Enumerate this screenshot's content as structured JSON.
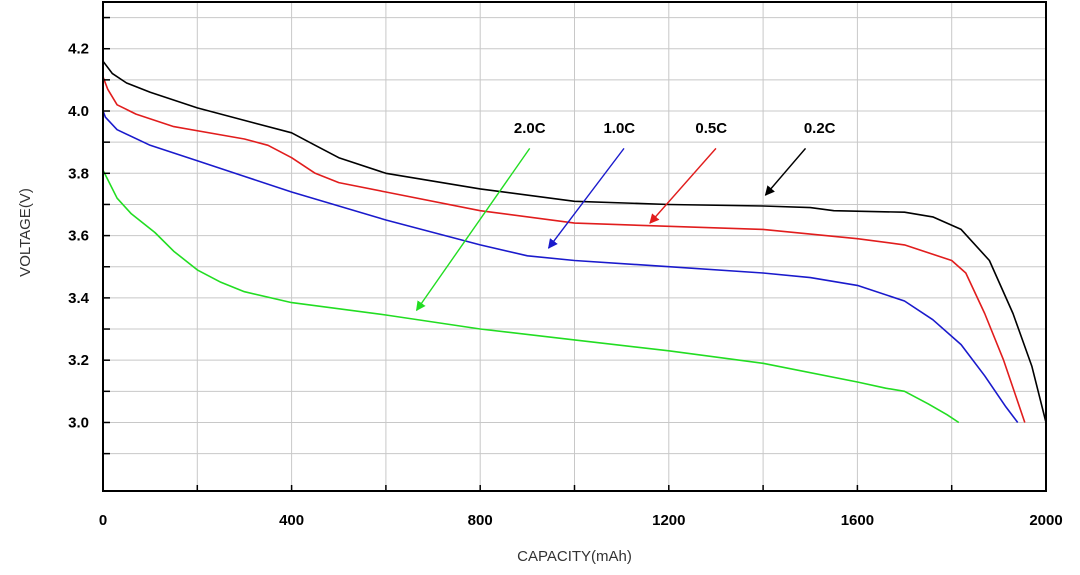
{
  "chart_data": {
    "type": "line",
    "title": "",
    "xlabel": "CAPACITY(mAh)",
    "ylabel": "VOLTAGE(V)",
    "xlim": [
      0,
      2000
    ],
    "ylim": [
      2.78,
      4.35
    ],
    "grid": true,
    "x_ticks": [
      0,
      400,
      800,
      1200,
      1600,
      2000
    ],
    "x_tick_labels": [
      "0",
      "400",
      "800",
      "1200",
      "1600",
      "2000"
    ],
    "y_ticks": [
      3.0,
      3.2,
      3.4,
      3.6,
      3.8,
      4.0,
      4.2
    ],
    "y_tick_labels": [
      "3.0",
      "3.2",
      "3.4",
      "3.6",
      "3.8",
      "4.0",
      "4.2"
    ],
    "series": [
      {
        "name": "0.2C",
        "color": "#000000",
        "label_anchor": [
          1520,
          3.93
        ],
        "arrow": [
          [
            1490,
            3.88
          ],
          [
            1405,
            3.73
          ]
        ],
        "points": [
          [
            0,
            4.16
          ],
          [
            20,
            4.12
          ],
          [
            50,
            4.09
          ],
          [
            100,
            4.06
          ],
          [
            200,
            4.01
          ],
          [
            300,
            3.97
          ],
          [
            400,
            3.93
          ],
          [
            450,
            3.89
          ],
          [
            500,
            3.85
          ],
          [
            600,
            3.8
          ],
          [
            800,
            3.75
          ],
          [
            1000,
            3.71
          ],
          [
            1200,
            3.7
          ],
          [
            1400,
            3.695
          ],
          [
            1500,
            3.69
          ],
          [
            1550,
            3.68
          ],
          [
            1700,
            3.675
          ],
          [
            1760,
            3.66
          ],
          [
            1820,
            3.62
          ],
          [
            1880,
            3.52
          ],
          [
            1930,
            3.35
          ],
          [
            1970,
            3.18
          ],
          [
            2000,
            3.0
          ]
        ]
      },
      {
        "name": "0.5C",
        "color": "#e11d1d",
        "label_anchor": [
          1290,
          3.93
        ],
        "arrow": [
          [
            1300,
            3.88
          ],
          [
            1160,
            3.64
          ]
        ],
        "points": [
          [
            0,
            4.11
          ],
          [
            10,
            4.07
          ],
          [
            30,
            4.02
          ],
          [
            70,
            3.99
          ],
          [
            150,
            3.95
          ],
          [
            300,
            3.91
          ],
          [
            350,
            3.89
          ],
          [
            400,
            3.85
          ],
          [
            450,
            3.8
          ],
          [
            500,
            3.77
          ],
          [
            600,
            3.74
          ],
          [
            800,
            3.68
          ],
          [
            1000,
            3.64
          ],
          [
            1200,
            3.63
          ],
          [
            1400,
            3.62
          ],
          [
            1600,
            3.59
          ],
          [
            1700,
            3.57
          ],
          [
            1800,
            3.52
          ],
          [
            1830,
            3.48
          ],
          [
            1870,
            3.35
          ],
          [
            1910,
            3.2
          ],
          [
            1955,
            3.0
          ]
        ]
      },
      {
        "name": "1.0C",
        "color": "#1a1acc",
        "label_anchor": [
          1095,
          3.93
        ],
        "arrow": [
          [
            1105,
            3.88
          ],
          [
            945,
            3.56
          ]
        ],
        "points": [
          [
            0,
            4.0
          ],
          [
            5,
            3.98
          ],
          [
            30,
            3.94
          ],
          [
            100,
            3.89
          ],
          [
            200,
            3.84
          ],
          [
            300,
            3.79
          ],
          [
            400,
            3.74
          ],
          [
            600,
            3.65
          ],
          [
            800,
            3.57
          ],
          [
            900,
            3.535
          ],
          [
            1000,
            3.52
          ],
          [
            1200,
            3.5
          ],
          [
            1400,
            3.48
          ],
          [
            1500,
            3.465
          ],
          [
            1600,
            3.44
          ],
          [
            1700,
            3.39
          ],
          [
            1760,
            3.33
          ],
          [
            1820,
            3.25
          ],
          [
            1870,
            3.15
          ],
          [
            1915,
            3.05
          ],
          [
            1940,
            3.0
          ]
        ]
      },
      {
        "name": "2.0C",
        "color": "#22dd22",
        "label_anchor": [
          905,
          3.93
        ],
        "arrow": [
          [
            905,
            3.88
          ],
          [
            665,
            3.36
          ]
        ],
        "points": [
          [
            0,
            3.81
          ],
          [
            10,
            3.78
          ],
          [
            30,
            3.72
          ],
          [
            60,
            3.67
          ],
          [
            110,
            3.61
          ],
          [
            150,
            3.55
          ],
          [
            200,
            3.49
          ],
          [
            250,
            3.45
          ],
          [
            300,
            3.42
          ],
          [
            400,
            3.385
          ],
          [
            600,
            3.345
          ],
          [
            800,
            3.3
          ],
          [
            1000,
            3.265
          ],
          [
            1200,
            3.23
          ],
          [
            1400,
            3.19
          ],
          [
            1600,
            3.13
          ],
          [
            1660,
            3.11
          ],
          [
            1700,
            3.1
          ],
          [
            1750,
            3.06
          ],
          [
            1790,
            3.025
          ],
          [
            1815,
            3.0
          ]
        ]
      }
    ]
  }
}
